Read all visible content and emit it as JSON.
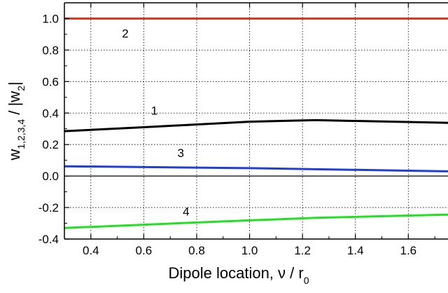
{
  "chart_data": {
    "type": "line",
    "xlabel": {
      "main": "Dipole location, ν / r",
      "sub": "0"
    },
    "ylabel": {
      "main": "w",
      "sub": "1,2,3,4",
      "tail": " / |w",
      "tail_sub": "2",
      "end": "|"
    },
    "xlim": [
      0.3,
      1.75
    ],
    "ylim": [
      -0.4,
      1.1
    ],
    "grid": true,
    "x_ticks": [
      0.4,
      0.6,
      0.8,
      1.0,
      1.2,
      1.4,
      1.6
    ],
    "x_tick_labels": [
      "0.4",
      "0.6",
      "0.8",
      "1.0",
      "1.2",
      "1.4",
      "1.6"
    ],
    "y_ticks": [
      -0.4,
      -0.2,
      0.0,
      0.2,
      0.4,
      0.6,
      0.8,
      1.0
    ],
    "y_tick_labels": [
      "-0.4",
      "-0.2",
      "0.0",
      "0.2",
      "0.4",
      "0.6",
      "0.8",
      "1.0"
    ],
    "series": [
      {
        "label": "1",
        "color": "#000000",
        "x": [
          0.3,
          0.6,
          1.0,
          1.25,
          1.75
        ],
        "y": [
          0.285,
          0.31,
          0.345,
          0.355,
          0.338
        ],
        "label_at": [
          0.64,
          0.39
        ]
      },
      {
        "label": "2",
        "color": "#e8341c",
        "x": [
          0.3,
          1.75
        ],
        "y": [
          1.0,
          1.0
        ],
        "label_at": [
          0.53,
          0.88
        ]
      },
      {
        "label": "3",
        "color": "#1f3fd6",
        "x": [
          0.3,
          1.0,
          1.75
        ],
        "y": [
          0.062,
          0.05,
          0.03
        ],
        "label_at": [
          0.74,
          0.12
        ]
      },
      {
        "label": "4",
        "color": "#22e022",
        "x": [
          0.3,
          0.8,
          1.25,
          1.75
        ],
        "y": [
          -0.33,
          -0.295,
          -0.265,
          -0.245
        ],
        "label_at": [
          0.76,
          -0.25
        ]
      }
    ]
  }
}
